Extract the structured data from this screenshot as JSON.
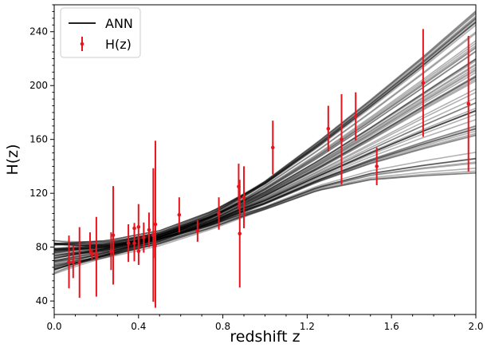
{
  "chart_data": {
    "type": "line",
    "xlabel": "redshift z",
    "ylabel": "H(z)",
    "xlim": [
      0.0,
      2.0
    ],
    "ylim": [
      30,
      260
    ],
    "xticks": [
      0.0,
      0.4,
      0.8,
      1.2,
      1.6,
      2.0
    ],
    "xtick_labels": [
      "0.0",
      "0.4",
      "0.8",
      "1.2",
      "1.6",
      "2.0"
    ],
    "yticks": [
      40,
      80,
      120,
      160,
      200,
      240
    ],
    "ytick_labels": [
      "40",
      "80",
      "120",
      "160",
      "200",
      "240"
    ],
    "legend": {
      "position": "top-left",
      "entries": [
        {
          "label": "ANN",
          "style": "line",
          "color": "#000000"
        },
        {
          "label": "H(z)",
          "style": "errorbar",
          "color": "#e8141c"
        }
      ]
    },
    "ann_band": {
      "name": "ANN",
      "color": "#000000",
      "opacity": 0.3,
      "x": [
        0.0,
        0.25,
        0.5,
        0.75,
        1.0,
        1.25,
        1.5,
        1.75,
        2.0
      ],
      "lower": [
        60,
        70,
        80,
        93,
        108,
        122,
        130,
        133,
        135
      ],
      "upper": [
        85,
        86,
        93,
        108,
        130,
        160,
        192,
        225,
        260
      ]
    },
    "ann_center": {
      "x": [
        0.0,
        0.25,
        0.5,
        0.75,
        1.0,
        1.25,
        1.5,
        1.75,
        2.0
      ],
      "y": [
        72,
        78,
        87,
        100,
        118,
        138,
        160,
        183,
        205
      ]
    },
    "hz_data": {
      "name": "H(z)",
      "color": "#e8141c",
      "points": [
        {
          "x": 0.07,
          "y": 69,
          "err": 19.6
        },
        {
          "x": 0.09,
          "y": 69,
          "err": 12
        },
        {
          "x": 0.12,
          "y": 68.6,
          "err": 26.2
        },
        {
          "x": 0.17,
          "y": 83,
          "err": 8
        },
        {
          "x": 0.179,
          "y": 75,
          "err": 4
        },
        {
          "x": 0.199,
          "y": 75,
          "err": 5
        },
        {
          "x": 0.2,
          "y": 72.9,
          "err": 29.6
        },
        {
          "x": 0.27,
          "y": 77,
          "err": 14
        },
        {
          "x": 0.28,
          "y": 88.8,
          "err": 36.6
        },
        {
          "x": 0.352,
          "y": 83,
          "err": 14
        },
        {
          "x": 0.38,
          "y": 83,
          "err": 13.5
        },
        {
          "x": 0.3802,
          "y": 94,
          "err": 4
        },
        {
          "x": 0.4,
          "y": 95,
          "err": 17
        },
        {
          "x": 0.4004,
          "y": 77,
          "err": 10.2
        },
        {
          "x": 0.4247,
          "y": 87.1,
          "err": 11.2
        },
        {
          "x": 0.4497,
          "y": 92.8,
          "err": 12.9
        },
        {
          "x": 0.47,
          "y": 89,
          "err": 49.6
        },
        {
          "x": 0.4783,
          "y": 80.9,
          "err": 9
        },
        {
          "x": 0.48,
          "y": 97,
          "err": 62
        },
        {
          "x": 0.593,
          "y": 104,
          "err": 13
        },
        {
          "x": 0.68,
          "y": 92,
          "err": 8
        },
        {
          "x": 0.781,
          "y": 105,
          "err": 12
        },
        {
          "x": 0.875,
          "y": 125,
          "err": 17
        },
        {
          "x": 0.88,
          "y": 90,
          "err": 40
        },
        {
          "x": 0.9,
          "y": 117,
          "err": 23
        },
        {
          "x": 1.037,
          "y": 154,
          "err": 20
        },
        {
          "x": 1.3,
          "y": 168,
          "err": 17
        },
        {
          "x": 1.363,
          "y": 160,
          "err": 33.6
        },
        {
          "x": 1.43,
          "y": 177,
          "err": 18
        },
        {
          "x": 1.53,
          "y": 140,
          "err": 14
        },
        {
          "x": 1.75,
          "y": 202,
          "err": 40
        },
        {
          "x": 1.965,
          "y": 186.5,
          "err": 50.4
        }
      ]
    }
  }
}
